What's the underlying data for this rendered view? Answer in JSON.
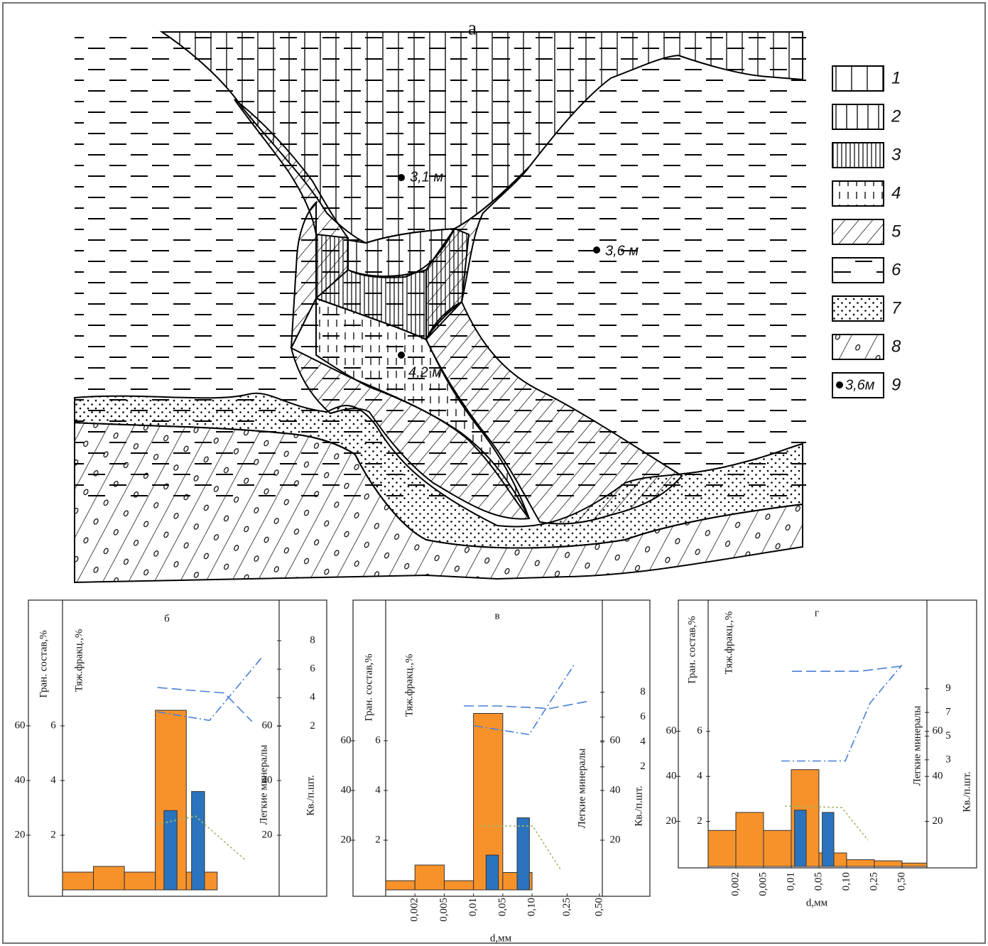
{
  "diagram": {
    "title": "а",
    "points": [
      {
        "label": "3,1 м"
      },
      {
        "label": "3,6 м"
      },
      {
        "label": "4,2 м"
      }
    ],
    "legend": [
      {
        "label": "1"
      },
      {
        "label": "2"
      },
      {
        "label": "3"
      },
      {
        "label": "4"
      },
      {
        "label": "5"
      },
      {
        "label": "6"
      },
      {
        "label": "7"
      },
      {
        "label": "8"
      },
      {
        "label": "9",
        "sample": "3,6м"
      }
    ]
  },
  "chart_data": [
    {
      "type": "bar",
      "title": "б",
      "y_label": "Гран. состав,%",
      "ylim": [
        0,
        100
      ],
      "yticks": [
        20,
        40,
        60
      ],
      "y2_label": "Тяж.фракц.,%",
      "y2lim": [
        0,
        10
      ],
      "y2ticks": [
        2,
        4,
        6
      ],
      "y3_label": "Легкие минералы",
      "y3lim": [
        0,
        100
      ],
      "y3ticks": [
        20,
        40,
        60
      ],
      "y4_label": "Кв./п.шт.",
      "y4lim": [
        -9.5,
        9.7
      ],
      "y4ticks": [
        2,
        4,
        6,
        8
      ],
      "xlim": [
        0,
        7
      ],
      "series": [
        {
          "mark": "bar",
          "color": "#f7922b",
          "bins": [
            0,
            1,
            2,
            3,
            4,
            5
          ],
          "values": [
            6.5,
            8.6,
            6.5,
            65.7,
            6.5
          ]
        },
        {
          "mark": "bar",
          "color": "#2a74bf",
          "axis": "y2",
          "x": [
            3.49,
            4.38
          ],
          "values": [
            2.9,
            3.6
          ]
        },
        {
          "mark": "line",
          "color": "#4a7fd8",
          "dash": "dashed",
          "axis": "y3",
          "x": [
            3.07,
            5.23,
            6.12
          ],
          "values": [
            74,
            72,
            61.6
          ]
        },
        {
          "mark": "line",
          "color": "#4a7fd8",
          "dash": "dashdot",
          "axis": "y4",
          "x": [
            3.07,
            4.75,
            6.47
          ],
          "values": [
            3,
            2.4,
            6.9
          ]
        },
        {
          "mark": "line",
          "color": "#a6b86a",
          "dash": "dotted",
          "axis": "y3",
          "x": [
            3.07,
            4.29,
            5.9
          ],
          "values": [
            24,
            27,
            11
          ]
        }
      ]
    },
    {
      "type": "bar",
      "title": "в",
      "x_label": "d,мм",
      "y_label": "Гран. состав,%",
      "ylim": [
        0,
        100
      ],
      "yticks": [
        20,
        40,
        60
      ],
      "y2_label": "Тяж.фракц.,%",
      "y2lim": [
        0,
        10
      ],
      "y2ticks": [
        2,
        4,
        6
      ],
      "y3_label": "Легкие минералы",
      "y3lim": [
        0,
        100
      ],
      "y3ticks": [
        20,
        40,
        60
      ],
      "y4_label": "Кв./п.шт.",
      "y4lim": [
        -7.9,
        12.1
      ],
      "y4ticks": [
        2,
        4,
        6,
        8
      ],
      "xlim": [
        0,
        7.4
      ],
      "xticks": [
        {
          "value": 1,
          "label": "0,002"
        },
        {
          "value": 2,
          "label": "0,005"
        },
        {
          "value": 3,
          "label": "0,01"
        },
        {
          "value": 4,
          "label": "0,05"
        },
        {
          "value": 5,
          "label": "0,10"
        },
        {
          "value": 6.2,
          "label": "0,25"
        },
        {
          "value": 7.3,
          "label": "0,50"
        }
      ],
      "series": [
        {
          "mark": "bar",
          "color": "#f7922b",
          "bins": [
            0,
            1,
            2,
            3,
            4,
            5
          ],
          "values": [
            3.7,
            10,
            3.7,
            71,
            7
          ]
        },
        {
          "mark": "bar",
          "color": "#2a74bf",
          "axis": "y2",
          "x": [
            3.64,
            4.7
          ],
          "values": [
            1.4,
            2.9
          ]
        },
        {
          "mark": "line",
          "color": "#4a7fd8",
          "dash": "dashed",
          "axis": "y3",
          "x": [
            2.67,
            3.81,
            5.63,
            6.97
          ],
          "values": [
            74,
            74,
            73,
            76
          ]
        },
        {
          "mark": "line",
          "color": "#4a7fd8",
          "dash": "dashdot",
          "axis": "y4",
          "x": [
            3.03,
            4.9,
            6.43
          ],
          "values": [
            5.3,
            4.6,
            10.2
          ]
        },
        {
          "mark": "line",
          "color": "#a6b86a",
          "dash": "dotted",
          "axis": "y3",
          "x": [
            3.2,
            5.02,
            6
          ],
          "values": [
            25.7,
            25.7,
            7.7
          ]
        }
      ]
    },
    {
      "type": "bar",
      "title": "г",
      "x_label": "d,мм",
      "y_label": "Гран. состав,%",
      "ylim": [
        0,
        100
      ],
      "yticks": [
        20,
        40,
        60
      ],
      "y2_label": "Тяж.фракц.,%",
      "y2lim": [
        0,
        10
      ],
      "y2ticks": [
        2,
        4,
        6
      ],
      "y3_label": "Легкие минералы",
      "y3lim": [
        0,
        100
      ],
      "y3ticks": [
        20,
        40,
        60
      ],
      "y4_label": "Кв./п.шт.",
      "y4lim": [
        -6,
        13
      ],
      "y4ticks": [
        3,
        5,
        7,
        9
      ],
      "xlim": [
        0,
        7.9
      ],
      "xticks": [
        {
          "value": 1,
          "label": "0,002"
        },
        {
          "value": 2,
          "label": "0,005"
        },
        {
          "value": 3,
          "label": "0,01"
        },
        {
          "value": 4,
          "label": "0,05"
        },
        {
          "value": 5,
          "label": "0,10"
        },
        {
          "value": 6,
          "label": "0,25"
        },
        {
          "value": 7,
          "label": "0,50"
        }
      ],
      "series": [
        {
          "mark": "bar",
          "color": "#f7922b",
          "bins": [
            0,
            1,
            2,
            3,
            4,
            5,
            6,
            7,
            7.9
          ],
          "values": [
            16,
            24,
            16,
            43,
            6,
            3,
            2.5,
            1.5
          ]
        },
        {
          "mark": "bar",
          "color": "#2a74bf",
          "axis": "y2",
          "x": [
            3.33,
            4.33
          ],
          "values": [
            2.5,
            2.4
          ]
        },
        {
          "mark": "line",
          "color": "#4a7fd8",
          "dash": "dashed",
          "axis": "y3",
          "x": [
            3.03,
            5.46,
            7
          ],
          "values": [
            86.7,
            86.7,
            89
          ]
        },
        {
          "mark": "line",
          "color": "#4a7fd8",
          "dash": "dashdot",
          "axis": "y4",
          "x": [
            2.64,
            4.95,
            5.85,
            7
          ],
          "values": [
            2.9,
            2.9,
            7.8,
            11
          ]
        },
        {
          "mark": "line",
          "color": "#a6b86a",
          "dash": "dotted",
          "axis": "y3",
          "x": [
            2.77,
            4.82,
            5.77
          ],
          "values": [
            26.8,
            26.2,
            11.7
          ]
        }
      ]
    }
  ]
}
